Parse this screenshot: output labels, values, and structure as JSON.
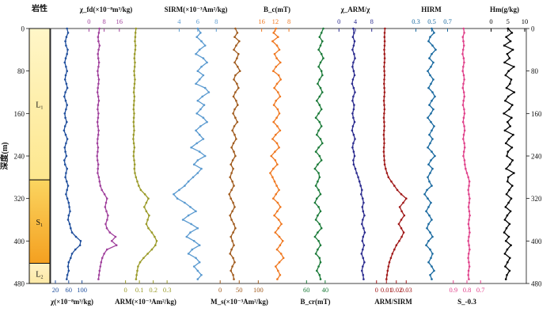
{
  "chart_data": {
    "type": "line",
    "lithology": {
      "header": "岩性",
      "units": [
        {
          "label": "L₁",
          "top": 0,
          "bottom": 285,
          "colors": [
            "#fff6c8",
            "#fde78e"
          ]
        },
        {
          "label": "S₁",
          "top": 285,
          "bottom": 442,
          "colors": [
            "#fbd560",
            "#f4a020"
          ]
        },
        {
          "label": "L₂",
          "top": 442,
          "bottom": 480,
          "colors": [
            "#fef2c4",
            "#fde9a6"
          ]
        }
      ]
    },
    "y_axis": {
      "label": "深度(m)",
      "range": [
        0,
        480
      ],
      "ticks": [
        "0",
        "80",
        "160",
        "240",
        "320",
        "400",
        "480"
      ],
      "tick_values": [
        0,
        80,
        160,
        240,
        320,
        400,
        480
      ]
    },
    "sample_depths": [
      0,
      8,
      16,
      24,
      32,
      40,
      48,
      56,
      64,
      72,
      80,
      88,
      96,
      104,
      112,
      120,
      128,
      136,
      144,
      152,
      160,
      168,
      176,
      184,
      192,
      200,
      208,
      216,
      224,
      232,
      240,
      248,
      256,
      264,
      272,
      280,
      288,
      296,
      304,
      312,
      320,
      328,
      336,
      344,
      352,
      360,
      368,
      376,
      384,
      392,
      400,
      408,
      416,
      424,
      432,
      440,
      448,
      456,
      464,
      472
    ],
    "series": [
      {
        "id": "chi",
        "label_bottom": "χ(×10⁻⁸m³/kg)",
        "label_top": "",
        "color": "#1f4e9c",
        "axis": "bottom",
        "ticks": [
          "20",
          "60",
          "100"
        ],
        "tick_values": [
          20,
          60,
          100
        ],
        "range": [
          20,
          120
        ],
        "values": [
          55,
          58,
          53,
          50,
          52,
          57,
          55,
          51,
          48,
          52,
          55,
          51,
          49,
          53,
          56,
          50,
          47,
          51,
          55,
          52,
          48,
          50,
          54,
          49,
          46,
          51,
          56,
          52,
          48,
          50,
          53,
          47,
          49,
          55,
          52,
          50,
          54,
          58,
          55,
          52,
          56,
          60,
          62,
          64,
          60,
          58,
          63,
          66,
          70,
          82,
          96,
          94,
          80,
          70,
          66,
          60,
          58,
          60,
          56,
          54
        ]
      },
      {
        "id": "chi_fd",
        "label_top": "χ_fd(×10⁻⁸m³/kg)",
        "label_bottom": "",
        "color": "#a0409c",
        "axis": "top",
        "ticks": [
          "0",
          "8",
          "16"
        ],
        "tick_values": [
          0,
          8,
          16
        ],
        "range": [
          -1,
          19
        ],
        "values": [
          5.5,
          5.2,
          4.8,
          5.0,
          5.6,
          5.1,
          4.7,
          4.9,
          5.3,
          5.0,
          4.6,
          4.8,
          5.2,
          5.0,
          4.7,
          4.5,
          4.9,
          5.2,
          4.8,
          4.6,
          5.0,
          4.8,
          4.5,
          4.7,
          5.1,
          4.9,
          4.6,
          4.4,
          4.8,
          4.6,
          4.3,
          4.5,
          4.9,
          4.7,
          4.6,
          5.2,
          5.6,
          6.0,
          6.8,
          8.2,
          9.5,
          9.0,
          8.5,
          9.2,
          10.0,
          9.6,
          8.8,
          9.4,
          11.0,
          14.0,
          12.0,
          14.5,
          9.5,
          8.0,
          7.0,
          6.4,
          6.0,
          5.6,
          5.3,
          5.0
        ]
      },
      {
        "id": "arm",
        "label_bottom": "ARM(×10⁻³Am²/kg)",
        "label_top": "",
        "color": "#9a9a28",
        "axis": "bottom",
        "ticks": [
          "0",
          "0.1",
          "0.2",
          "0.3"
        ],
        "tick_values": [
          0,
          0.1,
          0.2,
          0.3
        ],
        "range": [
          -0.015,
          0.305
        ],
        "values": [
          0.075,
          0.072,
          0.07,
          0.068,
          0.072,
          0.07,
          0.066,
          0.064,
          0.068,
          0.066,
          0.062,
          0.064,
          0.068,
          0.065,
          0.062,
          0.06,
          0.064,
          0.062,
          0.06,
          0.058,
          0.062,
          0.06,
          0.058,
          0.06,
          0.062,
          0.058,
          0.056,
          0.06,
          0.064,
          0.06,
          0.058,
          0.062,
          0.066,
          0.064,
          0.068,
          0.075,
          0.085,
          0.095,
          0.11,
          0.14,
          0.165,
          0.15,
          0.135,
          0.15,
          0.17,
          0.16,
          0.15,
          0.165,
          0.19,
          0.21,
          0.225,
          0.215,
          0.19,
          0.16,
          0.13,
          0.105,
          0.09,
          0.085,
          0.08,
          0.076
        ]
      },
      {
        "id": "sirm",
        "label_top": "SIRM(×10⁻³Am²/kg)",
        "label_bottom": "",
        "color": "#5a9ad0",
        "axis": "top",
        "ticks": [
          "4",
          "6",
          "8"
        ],
        "tick_values": [
          4,
          6,
          8
        ],
        "range": [
          2.6,
          9.0
        ],
        "values": [
          6.0,
          6.3,
          5.9,
          6.4,
          6.8,
          6.2,
          5.8,
          6.6,
          7.0,
          6.4,
          6.0,
          6.6,
          6.2,
          5.8,
          6.8,
          7.2,
          6.5,
          6.0,
          6.7,
          6.3,
          5.9,
          6.6,
          7.0,
          6.3,
          5.8,
          6.2,
          6.6,
          5.9,
          5.3,
          6.2,
          6.8,
          6.0,
          5.6,
          6.4,
          6.0,
          5.5,
          5.0,
          4.6,
          4.0,
          3.4,
          3.8,
          4.6,
          5.2,
          5.8,
          5.0,
          4.4,
          5.3,
          6.0,
          5.2,
          4.8,
          5.6,
          6.2,
          5.4,
          5.0,
          5.8,
          6.2,
          5.6,
          6.0,
          6.4,
          6.0
        ]
      },
      {
        "id": "ms",
        "label_bottom": "M_s(×10⁻³Am²/kg)",
        "label_top": "",
        "color": "#a05a1c",
        "axis": "bottom",
        "ticks": [
          "0",
          "50",
          "100"
        ],
        "tick_values": [
          0,
          50,
          100
        ],
        "range": [
          -17,
          118
        ],
        "values": [
          40,
          45,
          38,
          50,
          42,
          36,
          48,
          44,
          38,
          46,
          52,
          40,
          36,
          44,
          48,
          40,
          35,
          42,
          46,
          38,
          34,
          40,
          45,
          37,
          32,
          38,
          42,
          35,
          30,
          36,
          40,
          33,
          28,
          34,
          30,
          26,
          32,
          36,
          30,
          24,
          28,
          34,
          38,
          32,
          26,
          30,
          36,
          40,
          34,
          28,
          32,
          36,
          30,
          26,
          34,
          38,
          32,
          28,
          34,
          36
        ]
      },
      {
        "id": "bc",
        "label_top": "B_c(mT)",
        "label_bottom": "",
        "color": "#f07820",
        "axis": "top",
        "ticks": [
          "16",
          "12",
          "8"
        ],
        "tick_values": [
          16,
          12,
          8
        ],
        "range": [
          18,
          5
        ],
        "reversed": true,
        "values": [
          11.8,
          12.5,
          11.2,
          12.8,
          11.5,
          10.8,
          12.2,
          11.6,
          10.5,
          11.8,
          12.6,
          11.0,
          10.4,
          11.5,
          12.3,
          11.2,
          10.6,
          11.8,
          12.4,
          11.3,
          10.8,
          11.6,
          12.5,
          11.4,
          10.6,
          11.9,
          12.8,
          11.5,
          10.9,
          12.1,
          13.2,
          12.0,
          11.4,
          12.6,
          13.5,
          12.8,
          12.2,
          11.6,
          10.9,
          11.8,
          12.6,
          11.3,
          10.5,
          11.4,
          12.3,
          11.0,
          10.2,
          11.1,
          12.0,
          10.8,
          9.8,
          10.6,
          11.5,
          10.3,
          9.6,
          10.8,
          11.9,
          11.2,
          10.6,
          11.4
        ]
      },
      {
        "id": "bcr",
        "label_bottom": "B_cr(mT)",
        "label_top": "",
        "color": "#1a7a38",
        "axis": "bottom",
        "ticks": [
          "60",
          "40"
        ],
        "tick_values": [
          60,
          40
        ],
        "range": [
          73,
          28
        ],
        "reversed": true,
        "values": [
          42,
          44,
          46,
          43,
          45,
          47,
          44,
          42,
          45,
          47,
          44,
          43,
          46,
          48,
          45,
          43,
          46,
          49,
          46,
          44,
          47,
          50,
          46,
          44,
          47,
          49,
          45,
          43,
          47,
          50,
          46,
          44,
          48,
          51,
          47,
          46,
          48,
          50,
          47,
          45,
          49,
          51,
          47,
          45,
          48,
          50,
          46,
          44,
          48,
          51,
          47,
          45,
          48,
          50,
          46,
          45,
          47,
          49,
          46,
          45
        ]
      },
      {
        "id": "arm_chi",
        "label_top": "χ_ARM/χ",
        "label_bottom": "",
        "color": "#2a2a8e",
        "axis": "top",
        "ticks": [
          "0",
          "4",
          "8"
        ],
        "tick_values": [
          0,
          4,
          8
        ],
        "range": [
          -1.6,
          9.6
        ],
        "values": [
          3.5,
          3.7,
          3.4,
          3.8,
          3.6,
          3.3,
          3.7,
          3.9,
          3.5,
          3.3,
          3.6,
          3.8,
          3.4,
          3.2,
          3.6,
          3.9,
          3.5,
          3.3,
          3.7,
          3.6,
          3.3,
          3.5,
          3.8,
          3.4,
          3.2,
          3.6,
          3.9,
          3.5,
          3.3,
          3.6,
          3.8,
          3.5,
          3.6,
          4.0,
          4.3,
          4.7,
          5.0,
          5.3,
          5.6,
          5.4,
          5.8,
          6.0,
          5.7,
          5.9,
          6.2,
          5.8,
          5.6,
          6.0,
          6.3,
          5.9,
          5.7,
          6.1,
          5.8,
          5.5,
          5.9,
          6.2,
          5.8,
          5.6,
          5.9,
          6.0
        ]
      },
      {
        "id": "arm_sirm",
        "label_bottom": "ARM/SIRM",
        "label_top": "",
        "color": "#a01818",
        "axis": "bottom",
        "ticks": [
          "0",
          "0.01",
          "0.02",
          "0.03"
        ],
        "tick_values": [
          0,
          0.01,
          0.02,
          0.03
        ],
        "range": [
          -0.003,
          0.037
        ],
        "values": [
          0.0085,
          0.0082,
          0.008,
          0.0083,
          0.0081,
          0.0078,
          0.008,
          0.0083,
          0.008,
          0.0077,
          0.0079,
          0.0081,
          0.0078,
          0.0076,
          0.0079,
          0.0081,
          0.0078,
          0.0075,
          0.0078,
          0.008,
          0.0077,
          0.0074,
          0.0077,
          0.0079,
          0.0076,
          0.0073,
          0.0076,
          0.0078,
          0.0075,
          0.0073,
          0.0076,
          0.0079,
          0.0083,
          0.0092,
          0.0105,
          0.012,
          0.015,
          0.018,
          0.021,
          0.025,
          0.03,
          0.027,
          0.0235,
          0.0255,
          0.028,
          0.025,
          0.0225,
          0.025,
          0.0275,
          0.0255,
          0.023,
          0.02,
          0.018,
          0.016,
          0.0145,
          0.013,
          0.012,
          0.0112,
          0.0106,
          0.01
        ]
      },
      {
        "id": "hirm",
        "label_top": "HIRM",
        "label_bottom": "",
        "color": "#1a6aa0",
        "axis": "top",
        "ticks": [
          "0.3",
          "0.5",
          "0.7"
        ],
        "tick_values": [
          0.3,
          0.5,
          0.7
        ],
        "range": [
          0.245,
          0.745
        ],
        "values": [
          0.5,
          0.53,
          0.48,
          0.46,
          0.51,
          0.55,
          0.5,
          0.47,
          0.52,
          0.49,
          0.45,
          0.48,
          0.52,
          0.49,
          0.46,
          0.51,
          0.54,
          0.5,
          0.47,
          0.52,
          0.49,
          0.45,
          0.49,
          0.53,
          0.5,
          0.47,
          0.51,
          0.48,
          0.45,
          0.5,
          0.54,
          0.49,
          0.46,
          0.51,
          0.48,
          0.45,
          0.47,
          0.5,
          0.44,
          0.41,
          0.45,
          0.49,
          0.46,
          0.43,
          0.47,
          0.5,
          0.46,
          0.44,
          0.48,
          0.51,
          0.46,
          0.43,
          0.48,
          0.51,
          0.49,
          0.46,
          0.5,
          0.53,
          0.48,
          0.5
        ]
      },
      {
        "id": "s03",
        "label_bottom": "S_-0.3",
        "label_top": "",
        "color": "#e0408a",
        "axis": "bottom",
        "ticks": [
          "0.9",
          "0.8",
          "0.7"
        ],
        "tick_values": [
          0.9,
          0.8,
          0.7
        ],
        "range": [
          0.945,
          0.655
        ],
        "reversed": true,
        "values": [
          0.825,
          0.82,
          0.83,
          0.826,
          0.822,
          0.828,
          0.832,
          0.824,
          0.821,
          0.827,
          0.831,
          0.823,
          0.82,
          0.826,
          0.83,
          0.822,
          0.819,
          0.825,
          0.829,
          0.821,
          0.818,
          0.824,
          0.828,
          0.82,
          0.817,
          0.823,
          0.827,
          0.819,
          0.816,
          0.822,
          0.826,
          0.818,
          0.815,
          0.81,
          0.8,
          0.79,
          0.782,
          0.785,
          0.79,
          0.786,
          0.78,
          0.784,
          0.788,
          0.783,
          0.779,
          0.785,
          0.789,
          0.784,
          0.78,
          0.786,
          0.79,
          0.785,
          0.781,
          0.787,
          0.791,
          0.786,
          0.782,
          0.788,
          0.79,
          0.786
        ]
      },
      {
        "id": "hm",
        "label_top": "Hm(g/kg)",
        "label_bottom": "",
        "color": "#000000",
        "axis": "top",
        "ticks": [
          "0",
          "5",
          "10"
        ],
        "tick_values": [
          0,
          5,
          10
        ],
        "range": [
          -2,
          10
        ],
        "values": [
          5.0,
          6.2,
          4.5,
          5.8,
          3.9,
          6.5,
          4.8,
          5.5,
          4.0,
          6.8,
          5.2,
          4.3,
          6.0,
          5.6,
          4.6,
          6.9,
          5.1,
          4.2,
          6.3,
          5.4,
          3.8,
          6.1,
          4.9,
          5.7,
          4.1,
          6.6,
          5.3,
          4.4,
          6.2,
          5.0,
          4.7,
          6.4,
          5.6,
          4.5,
          6.8,
          5.1,
          4.9,
          6.3,
          5.4,
          4.6,
          6.0,
          5.2,
          4.3,
          5.8,
          4.8,
          4.1,
          5.5,
          4.6,
          3.9,
          5.3,
          4.4,
          5.9,
          4.8,
          4.1,
          5.6,
          4.9,
          4.2,
          5.5,
          4.7,
          4.4
        ]
      }
    ]
  }
}
